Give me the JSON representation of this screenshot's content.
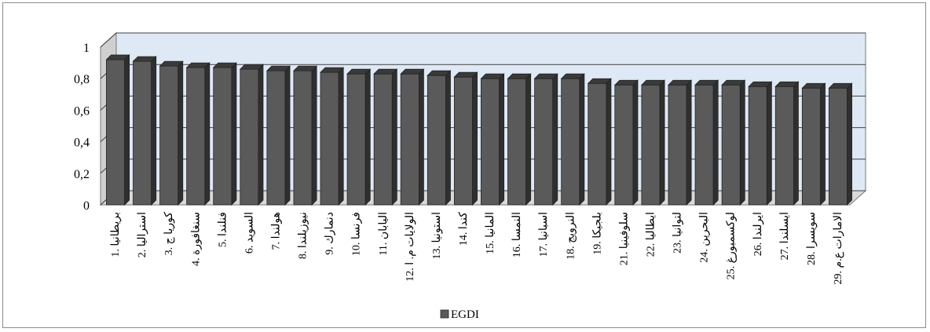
{
  "chart_data": {
    "type": "bar",
    "categories": [
      "1. بريطانيا",
      "2. استراليا",
      "3. كوريا ج",
      "4. سنغافورة",
      "5. فنلندا",
      "6. السويد",
      "7. هولندا",
      "8. نيوزيلندا",
      "9. دنمارك",
      "10. فرنسا",
      "11. اليابان",
      "12. الولايات م. ا",
      "13. استونيا",
      "14. كندا",
      "15. المانيا",
      "16. النمسا",
      "17. اسبانيا",
      "18. النرويج",
      "19. بلجيكا",
      "21. سلوفينيا",
      "22. ايطاليا",
      "23. لتوانيا",
      "24. البحرين",
      "25. لوكسمبورغ",
      "26. ايرلندا",
      "27. ايسلندا",
      "28. سويسرا",
      "29. الامارات ع.م"
    ],
    "series": [
      {
        "name": "EGDI",
        "values": [
          0.92,
          0.91,
          0.88,
          0.87,
          0.87,
          0.86,
          0.85,
          0.85,
          0.84,
          0.83,
          0.83,
          0.83,
          0.82,
          0.81,
          0.8,
          0.8,
          0.8,
          0.8,
          0.77,
          0.76,
          0.76,
          0.76,
          0.76,
          0.76,
          0.75,
          0.75,
          0.74,
          0.74
        ]
      }
    ],
    "yticks": [
      "0",
      "0,2",
      "0,4",
      "0,6",
      "0,8",
      "1"
    ],
    "ylim": [
      0,
      1
    ],
    "grid": true,
    "legend_position": "bottom",
    "colors": {
      "bar_front": "#5a5a5a",
      "bar_top": "#3a3a3a",
      "bar_side": "#2f2f2f",
      "back_wall": "#dfe9f6",
      "side_wall": "#cfcfcf",
      "floor": "#d9d9d9",
      "gridline": "#404040"
    }
  }
}
